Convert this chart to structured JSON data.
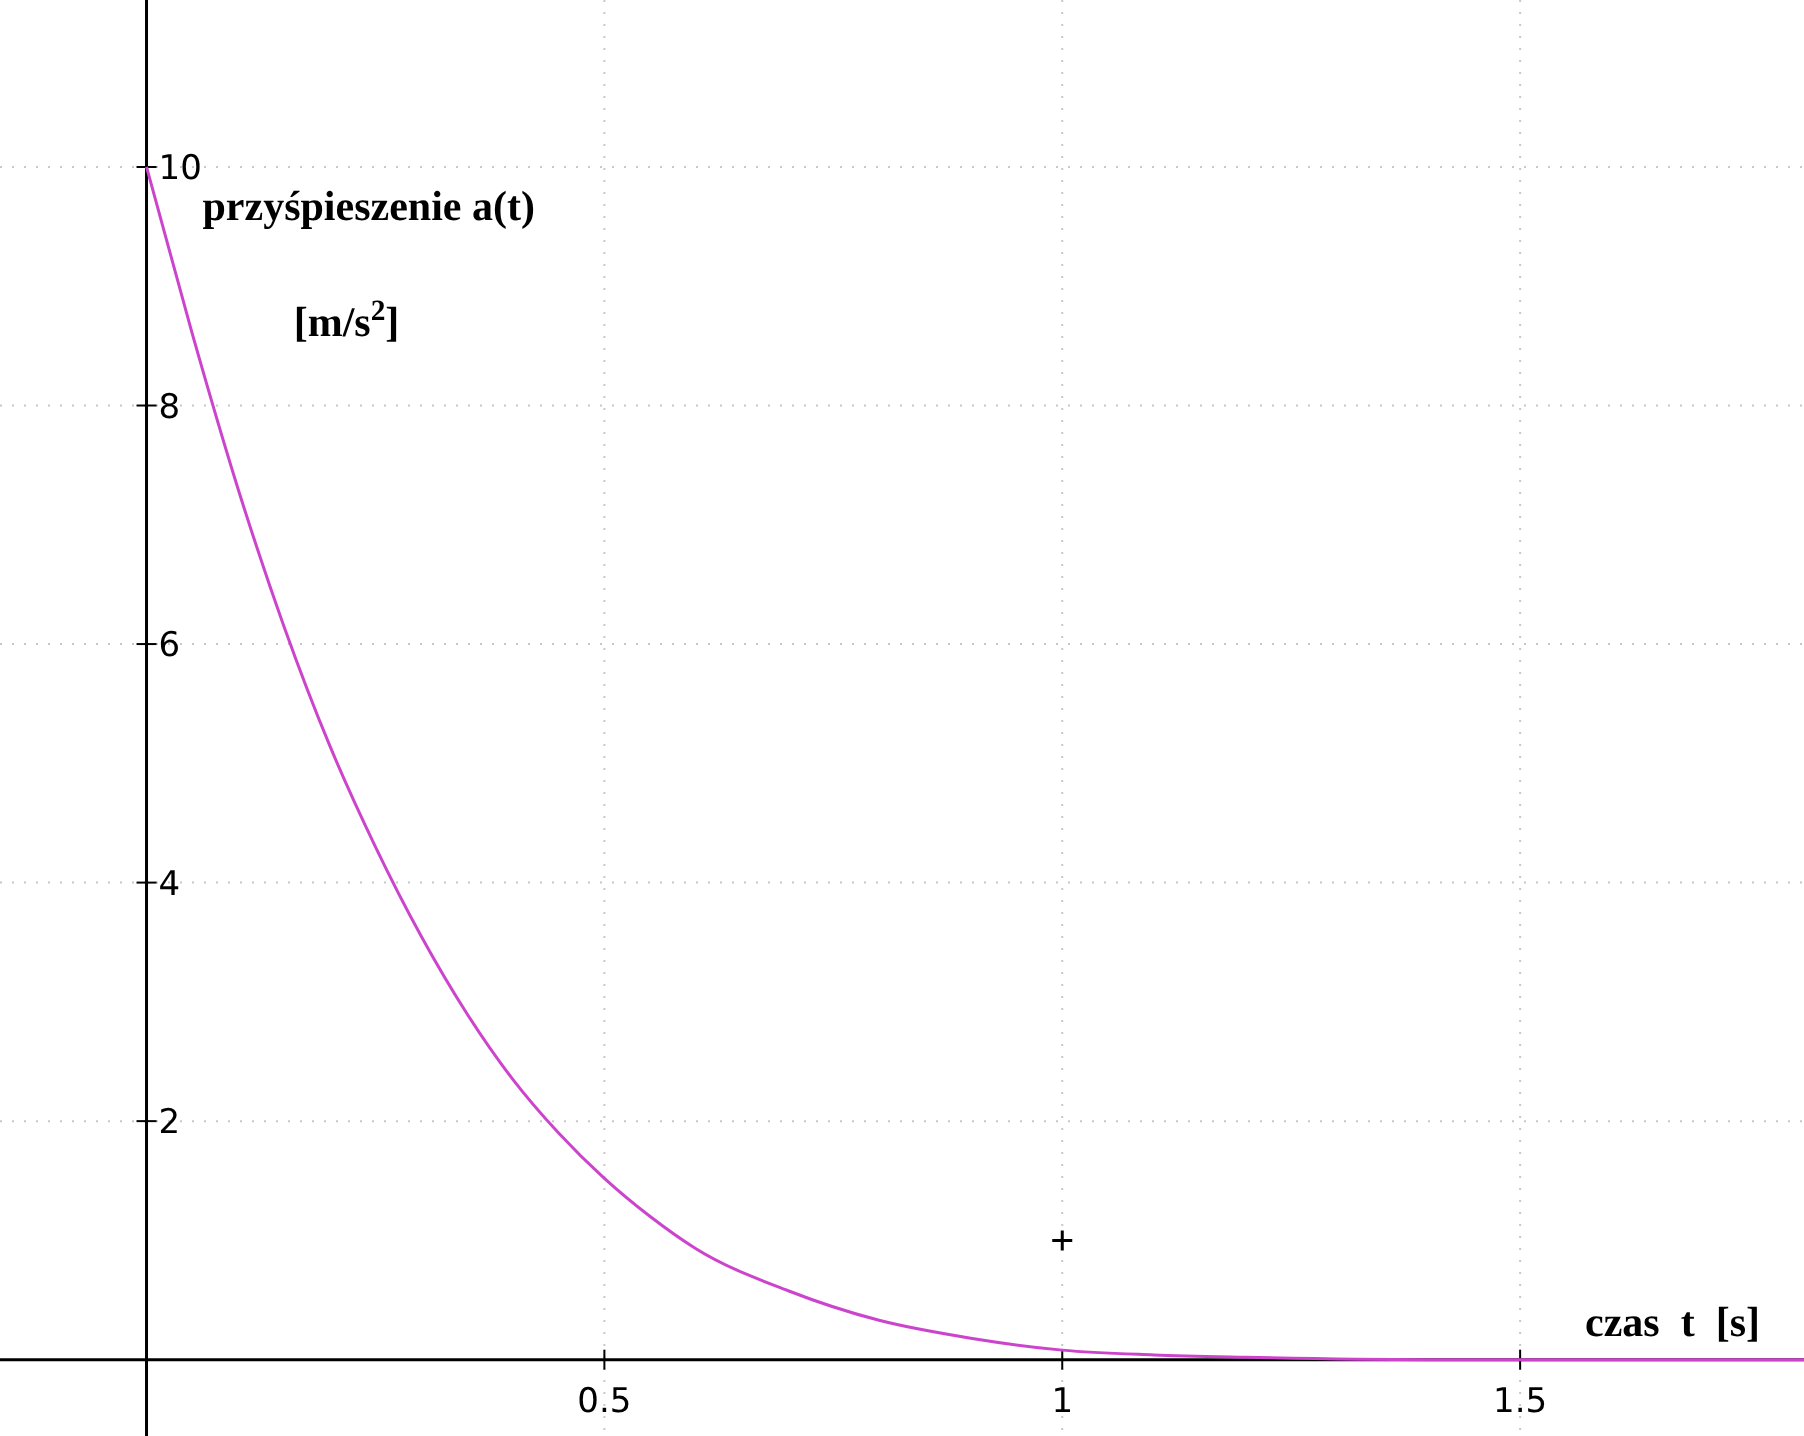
{
  "chart_data": {
    "type": "line",
    "xlabel": "czas  t  [s]",
    "ylabel": "przyśpieszenie  a(t)\n[m/s$^{2}$]",
    "xlim": [
      -0.16,
      1.81
    ],
    "ylim": [
      -0.64,
      11.4
    ],
    "xticks": [
      0.5,
      1,
      1.5
    ],
    "yticks": [
      2,
      4,
      6,
      8,
      10
    ],
    "grid": true,
    "series": [
      {
        "color": "#cc44cc",
        "x": [
          0,
          0.05,
          0.1,
          0.15,
          0.2,
          0.25,
          0.3,
          0.35,
          0.4,
          0.45,
          0.5,
          0.55,
          0.6,
          0.7,
          0.8,
          0.9,
          1.0,
          1.1,
          1.2,
          1.4,
          1.81
        ],
        "values": [
          10,
          8.6,
          7.3,
          6.15,
          5.15,
          4.3,
          3.55,
          2.9,
          2.35,
          1.9,
          1.52,
          1.2,
          0.93,
          0.58,
          0.33,
          0.18,
          0.08,
          0.04,
          0.02,
          0,
          0
        ]
      },
      {
        "type": "scatter",
        "color": "#000000",
        "marker": "cross",
        "x": [
          1
        ],
        "values": [
          1
        ]
      }
    ]
  }
}
